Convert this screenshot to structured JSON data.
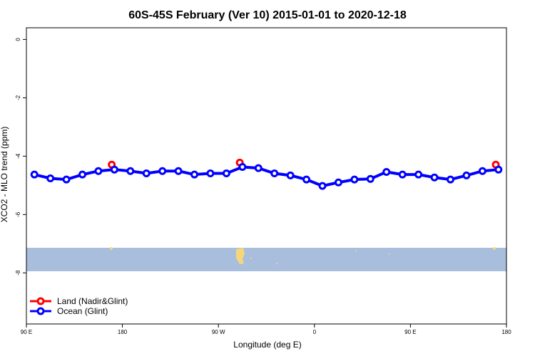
{
  "chart_data": {
    "type": "line",
    "title": "60S-45S February (Ver 10)   2015-01-01 to 2020-12-18",
    "x_label": "Longitude (deg E)",
    "y_label": "XCO2 - MLO trend (ppm)",
    "xlim": [
      90,
      540
    ],
    "xticks": [
      {
        "value": 90,
        "label": "90 E"
      },
      {
        "value": 180,
        "label": "180"
      },
      {
        "value": 270,
        "label": "90 W"
      },
      {
        "value": 360,
        "label": "0"
      },
      {
        "value": 450,
        "label": "90 E"
      },
      {
        "value": 540,
        "label": "180"
      }
    ],
    "ylim": [
      -9.75,
      0.4
    ],
    "yticks": [
      0,
      -2,
      -4,
      -6,
      -8
    ],
    "legend": "bottom-left",
    "series": [
      {
        "name": "Land (Nadir&Glint)",
        "color": "#ff0000",
        "connect": false,
        "x": [
          170,
          290,
          530
        ],
        "values": [
          -4.29,
          -4.22,
          -4.29
        ]
      },
      {
        "name": "Ocean (Glint)",
        "color": "#0000ff",
        "connect": true,
        "x": [
          97.5,
          112.5,
          127.5,
          142.5,
          157.5,
          172.5,
          187.5,
          202.5,
          217.5,
          232.5,
          247.5,
          262.5,
          277.5,
          292.5,
          307.5,
          322.5,
          337.5,
          352.5,
          367.5,
          382.5,
          397.5,
          412.5,
          427.5,
          442.5,
          457.5,
          472.5,
          487.5,
          502.5,
          517.5,
          532.5
        ],
        "values": [
          -4.63,
          -4.76,
          -4.8,
          -4.63,
          -4.51,
          -4.46,
          -4.51,
          -4.59,
          -4.51,
          -4.51,
          -4.63,
          -4.59,
          -4.59,
          -4.37,
          -4.41,
          -4.59,
          -4.66,
          -4.8,
          -5.02,
          -4.9,
          -4.8,
          -4.78,
          -4.54,
          -4.63,
          -4.63,
          -4.73,
          -4.8,
          -4.66,
          -4.51,
          -4.46
        ]
      }
    ]
  }
}
